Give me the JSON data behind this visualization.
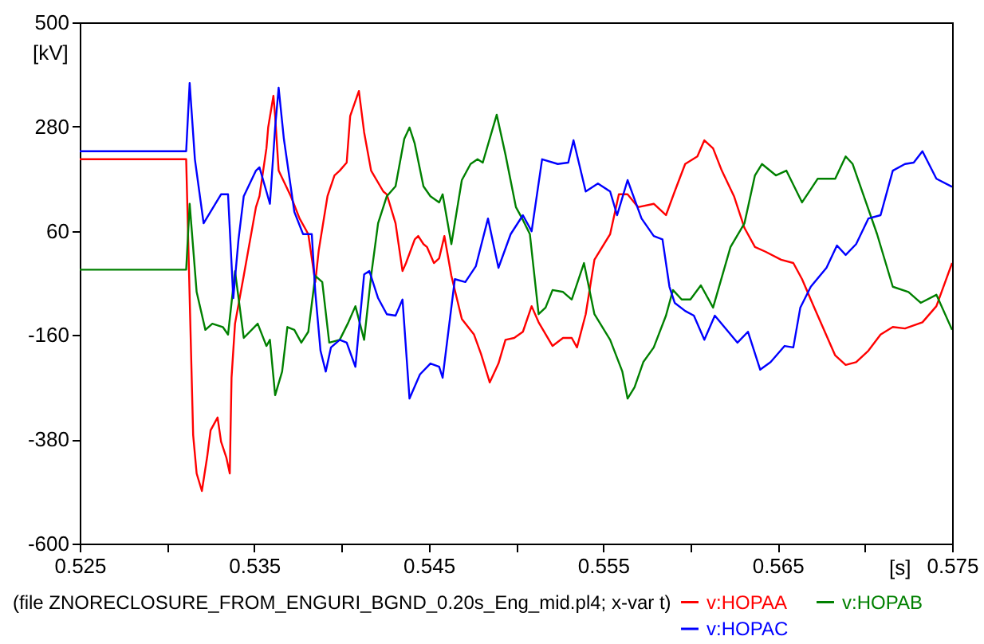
{
  "chart_data": {
    "type": "line",
    "xlabel": "[s]",
    "ylabel": "[kV]",
    "annotations": [
      "(file ZNORECLOSURE_FROM_ENGURI_BGND_0.20s_Eng_mid.pl4; x-var t)"
    ],
    "xlim": [
      0.525,
      0.575
    ],
    "xticks": [
      0.525,
      {
        "value": 0.53,
        "label": null
      },
      0.535,
      {
        "value": 0.54,
        "label": null
      },
      0.545,
      {
        "value": 0.55,
        "label": null
      },
      0.555,
      {
        "value": 0.56,
        "label": null
      },
      0.565,
      {
        "value": 0.57,
        "label": null
      },
      0.575
    ],
    "ylim": [
      -600,
      500
    ],
    "yticks": [
      -600,
      -380,
      -160,
      60,
      280,
      500
    ],
    "legend": "bottom right",
    "series": [
      {
        "name": "v:HOPAA",
        "color": "#ff0000",
        "x": [
          0.525,
          0.5311,
          0.5315,
          0.5317,
          0.532,
          0.5323,
          0.5325,
          0.5329,
          0.5331,
          0.5334,
          0.5336,
          0.5337,
          0.5339,
          0.5344,
          0.5351,
          0.5353,
          0.5357,
          0.5358,
          0.5361,
          0.5362,
          0.5364,
          0.5371,
          0.5376,
          0.5381,
          0.5385,
          0.5387,
          0.5392,
          0.5396,
          0.5399,
          0.5403,
          0.5405,
          0.541,
          0.5413,
          0.5417,
          0.5424,
          0.5426,
          0.5431,
          0.5435,
          0.5437,
          0.5442,
          0.5444,
          0.5447,
          0.5449,
          0.5453,
          0.5456,
          0.5459,
          0.5463,
          0.5469,
          0.5476,
          0.548,
          0.5485,
          0.549,
          0.5494,
          0.5499,
          0.5504,
          0.5509,
          0.5513,
          0.5521,
          0.5527,
          0.5532,
          0.5535,
          0.554,
          0.5545,
          0.5554,
          0.5559,
          0.5564,
          0.557,
          0.5579,
          0.5586,
          0.5591,
          0.5597,
          0.5604,
          0.5608,
          0.5613,
          0.5618,
          0.5625,
          0.5631,
          0.5637,
          0.5643,
          0.5652,
          0.5659,
          0.5664,
          0.5671,
          0.5683,
          0.5689,
          0.5695,
          0.5702,
          0.5709,
          0.5716,
          0.5723,
          0.5733,
          0.5741,
          0.575
        ],
        "values": [
          211,
          211,
          -371,
          -452,
          -489,
          -418,
          -361,
          -334,
          -385,
          -418,
          -452,
          -250,
          -136,
          -35,
          110,
          133,
          234,
          278,
          345,
          302,
          187,
          133,
          86,
          53,
          -48,
          19,
          133,
          177,
          187,
          204,
          302,
          355,
          268,
          187,
          143,
          137,
          76,
          -25,
          -8,
          42,
          49,
          32,
          26,
          -8,
          2,
          49,
          -35,
          -126,
          -159,
          -200,
          -260,
          -220,
          -170,
          -166,
          -153,
          -99,
          -133,
          -183,
          -166,
          -166,
          -186,
          -116,
          -1,
          53,
          137,
          137,
          110,
          117,
          93,
          143,
          201,
          217,
          251,
          234,
          187,
          133,
          66,
          26,
          16,
          -1,
          -8,
          -42,
          -102,
          -203,
          -223,
          -217,
          -193,
          -159,
          -143,
          -146,
          -133,
          -99,
          -8
        ]
      },
      {
        "name": "v:HOPAB",
        "color": "#008000",
        "x": [
          0.525,
          0.5311,
          0.5313,
          0.5317,
          0.5322,
          0.5326,
          0.5332,
          0.5335,
          0.5339,
          0.5344,
          0.5352,
          0.5357,
          0.5359,
          0.5362,
          0.5366,
          0.5369,
          0.5373,
          0.5377,
          0.5381,
          0.5385,
          0.5389,
          0.5393,
          0.5399,
          0.5404,
          0.5408,
          0.5413,
          0.5417,
          0.5421,
          0.5426,
          0.5431,
          0.5436,
          0.5439,
          0.5442,
          0.5447,
          0.5451,
          0.5456,
          0.5458,
          0.5463,
          0.5469,
          0.5474,
          0.5478,
          0.5481,
          0.5489,
          0.5494,
          0.55,
          0.5504,
          0.5508,
          0.5513,
          0.5517,
          0.5521,
          0.5527,
          0.5532,
          0.5539,
          0.5545,
          0.5554,
          0.5561,
          0.5564,
          0.5568,
          0.5573,
          0.5579,
          0.5586,
          0.559,
          0.5595,
          0.56,
          0.5606,
          0.5613,
          0.5623,
          0.5631,
          0.5637,
          0.5641,
          0.5649,
          0.5655,
          0.5664,
          0.5673,
          0.5683,
          0.5689,
          0.5693,
          0.5707,
          0.5716,
          0.5725,
          0.5732,
          0.5741,
          0.575
        ],
        "values": [
          -22,
          -22,
          117,
          -69,
          -149,
          -136,
          -143,
          -159,
          -25,
          -166,
          -136,
          -183,
          -170,
          -287,
          -237,
          -143,
          -149,
          -176,
          -153,
          -35,
          -48,
          -176,
          -170,
          -133,
          -99,
          -170,
          -35,
          76,
          133,
          154,
          254,
          278,
          244,
          154,
          133,
          120,
          137,
          32,
          167,
          201,
          211,
          204,
          305,
          221,
          110,
          83,
          53,
          -116,
          -102,
          -65,
          -69,
          -85,
          -8,
          -116,
          -170,
          -237,
          -294,
          -270,
          -217,
          -186,
          -119,
          -65,
          -85,
          -85,
          -55,
          -102,
          26,
          76,
          177,
          201,
          177,
          187,
          120,
          170,
          170,
          217,
          201,
          53,
          -58,
          -69,
          -92,
          -75,
          -149
        ]
      },
      {
        "name": "v:HOPAC",
        "color": "#0000ff",
        "x": [
          0.525,
          0.5311,
          0.5313,
          0.5316,
          0.5321,
          0.5331,
          0.5335,
          0.5338,
          0.5341,
          0.5344,
          0.5351,
          0.5353,
          0.5357,
          0.5359,
          0.5362,
          0.5364,
          0.5367,
          0.5373,
          0.5378,
          0.5383,
          0.5385,
          0.5388,
          0.5391,
          0.5394,
          0.5399,
          0.5403,
          0.5408,
          0.5413,
          0.5416,
          0.5421,
          0.5426,
          0.5431,
          0.5435,
          0.5439,
          0.5445,
          0.5451,
          0.5456,
          0.5458,
          0.5465,
          0.5471,
          0.5477,
          0.5484,
          0.549,
          0.5497,
          0.5504,
          0.5509,
          0.5515,
          0.5524,
          0.553,
          0.5533,
          0.554,
          0.5547,
          0.5554,
          0.5558,
          0.5564,
          0.5572,
          0.5579,
          0.5584,
          0.5588,
          0.5591,
          0.5597,
          0.5602,
          0.5608,
          0.5614,
          0.5627,
          0.5633,
          0.564,
          0.5646,
          0.5654,
          0.5659,
          0.5663,
          0.5669,
          0.5678,
          0.5684,
          0.5689,
          0.5695,
          0.5702,
          0.5709,
          0.5716,
          0.5723,
          0.5728,
          0.5733,
          0.5741,
          0.575
        ],
        "values": [
          228,
          228,
          372,
          211,
          76,
          137,
          137,
          -82,
          42,
          133,
          187,
          194,
          143,
          117,
          278,
          362,
          254,
          100,
          53,
          53,
          -69,
          -193,
          -237,
          -186,
          -170,
          -176,
          -227,
          -32,
          -25,
          -82,
          -116,
          -119,
          -85,
          -294,
          -243,
          -220,
          -227,
          -250,
          -42,
          -48,
          -15,
          86,
          -18,
          53,
          93,
          59,
          211,
          201,
          204,
          251,
          143,
          160,
          143,
          93,
          167,
          86,
          49,
          42,
          -58,
          -92,
          -109,
          -119,
          -170,
          -119,
          -176,
          -153,
          -233,
          -217,
          -183,
          -186,
          -102,
          -58,
          -18,
          29,
          9,
          32,
          86,
          93,
          187,
          201,
          204,
          228,
          170,
          153
        ]
      }
    ]
  }
}
